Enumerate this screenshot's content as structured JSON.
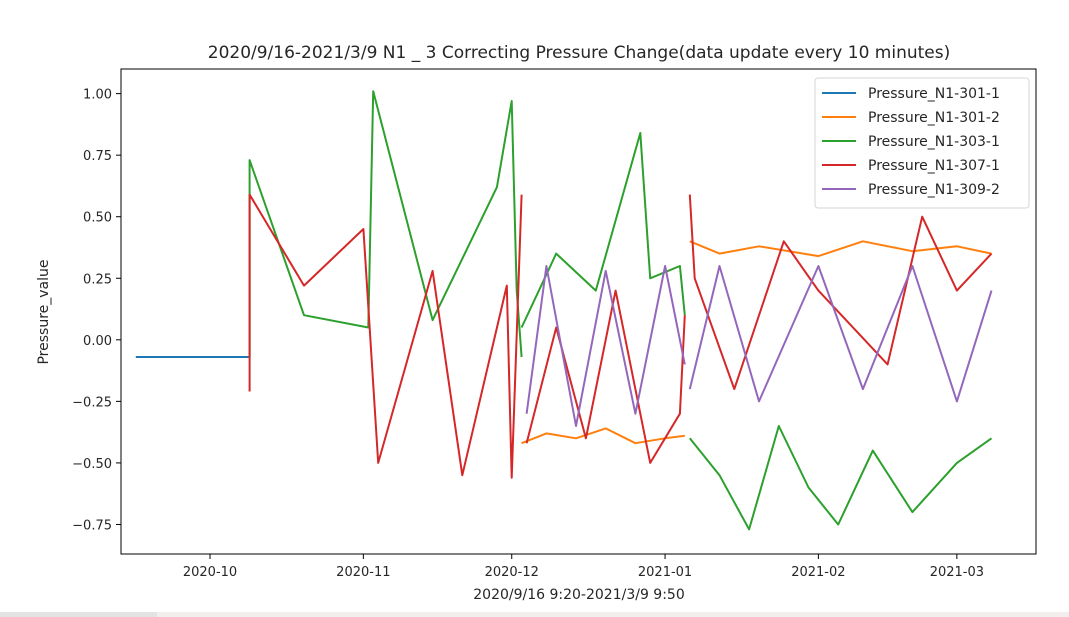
{
  "chart_data": {
    "type": "line",
    "title": "2020/9/16-2021/3/9 N1 _ 3  Correcting Pressure Change(data update every 10 minutes)",
    "xlabel": "2020/9/16 9:20-2021/3/9 9:50",
    "ylabel": "Pressure_value",
    "xlim": [
      "2020-09-13",
      "2021-03-17"
    ],
    "ylim": [
      -0.87,
      1.1
    ],
    "x_ticks": [
      "2020-10",
      "2020-11",
      "2020-12",
      "2021-01",
      "2021-02",
      "2021-03"
    ],
    "x_tick_dates": [
      "2020-10-01",
      "2020-11-01",
      "2020-12-01",
      "2021-01-01",
      "2021-02-01",
      "2021-03-01"
    ],
    "y_ticks": [
      "1.00",
      "0.75",
      "0.50",
      "0.25",
      "0.00",
      "−0.25",
      "−0.50",
      "−0.75"
    ],
    "y_tick_values": [
      1.0,
      0.75,
      0.5,
      0.25,
      0.0,
      -0.25,
      -0.5,
      -0.75
    ],
    "legend_position": "top-right",
    "grid": false,
    "series": [
      {
        "name": "Pressure_N1-301-1",
        "color": "#1f77b4",
        "segments": [
          {
            "x": [
              "2020-09-16",
              "2020-10-09"
            ],
            "y": [
              -0.07,
              -0.07
            ]
          }
        ]
      },
      {
        "name": "Pressure_N1-301-2",
        "color": "#ff7f0e",
        "segments": [
          {
            "x": [
              "2020-12-03",
              "2020-12-08",
              "2020-12-14",
              "2020-12-20",
              "2020-12-26",
              "2021-01-01",
              "2021-01-05"
            ],
            "y": [
              -0.42,
              -0.38,
              -0.4,
              -0.36,
              -0.42,
              -0.4,
              -0.39
            ]
          },
          {
            "x": [
              "2021-01-06",
              "2021-01-12",
              "2021-01-20",
              "2021-02-01",
              "2021-02-10",
              "2021-02-20",
              "2021-03-01",
              "2021-03-08"
            ],
            "y": [
              0.4,
              0.35,
              0.38,
              0.34,
              0.4,
              0.36,
              0.38,
              0.35
            ]
          }
        ]
      },
      {
        "name": "Pressure_N1-303-1",
        "color": "#2ca02c",
        "segments": [
          {
            "x": [
              "2020-10-09",
              "2020-10-09",
              "2020-10-20",
              "2020-11-02",
              "2020-11-03",
              "2020-11-15",
              "2020-11-28",
              "2020-12-01",
              "2020-12-02",
              "2020-12-03"
            ],
            "y": [
              -0.07,
              0.73,
              0.1,
              0.05,
              1.01,
              0.08,
              0.62,
              0.97,
              0.2,
              -0.07
            ]
          },
          {
            "x": [
              "2020-12-03",
              "2020-12-10",
              "2020-12-18",
              "2020-12-27",
              "2020-12-29",
              "2021-01-04",
              "2021-01-05"
            ],
            "y": [
              0.05,
              0.35,
              0.2,
              0.84,
              0.25,
              0.3,
              0.1
            ]
          },
          {
            "x": [
              "2021-01-06",
              "2021-01-12",
              "2021-01-18",
              "2021-01-24",
              "2021-01-30",
              "2021-02-05",
              "2021-02-12",
              "2021-02-20",
              "2021-03-01",
              "2021-03-08"
            ],
            "y": [
              -0.4,
              -0.55,
              -0.77,
              -0.35,
              -0.6,
              -0.75,
              -0.45,
              -0.7,
              -0.5,
              -0.4
            ]
          }
        ]
      },
      {
        "name": "Pressure_N1-307-1",
        "color": "#d62728",
        "segments": [
          {
            "x": [
              "2020-10-09",
              "2020-10-09",
              "2020-10-20",
              "2020-11-01",
              "2020-11-04",
              "2020-11-15",
              "2020-11-21",
              "2020-11-30",
              "2020-12-01",
              "2020-12-03"
            ],
            "y": [
              -0.21,
              0.59,
              0.22,
              0.45,
              -0.5,
              0.28,
              -0.55,
              0.22,
              -0.56,
              0.59
            ]
          },
          {
            "x": [
              "2020-12-04",
              "2020-12-10",
              "2020-12-16",
              "2020-12-22",
              "2020-12-29",
              "2021-01-04",
              "2021-01-05"
            ],
            "y": [
              -0.42,
              0.05,
              -0.4,
              0.2,
              -0.5,
              -0.3,
              0.1
            ]
          },
          {
            "x": [
              "2021-01-06",
              "2021-01-07",
              "2021-01-15",
              "2021-01-25",
              "2021-02-01",
              "2021-02-15",
              "2021-02-22",
              "2021-03-01",
              "2021-03-08"
            ],
            "y": [
              0.59,
              0.25,
              -0.2,
              0.4,
              0.2,
              -0.1,
              0.5,
              0.2,
              0.35
            ]
          }
        ]
      },
      {
        "name": "Pressure_N1-309-2",
        "color": "#9467bd",
        "segments": [
          {
            "x": [
              "2020-12-04",
              "2020-12-08",
              "2020-12-14",
              "2020-12-20",
              "2020-12-26",
              "2021-01-01",
              "2021-01-05"
            ],
            "y": [
              -0.3,
              0.3,
              -0.35,
              0.28,
              -0.3,
              0.3,
              -0.1
            ]
          },
          {
            "x": [
              "2021-01-06",
              "2021-01-12",
              "2021-01-20",
              "2021-02-01",
              "2021-02-10",
              "2021-02-20",
              "2021-03-01",
              "2021-03-08"
            ],
            "y": [
              -0.2,
              0.3,
              -0.25,
              0.3,
              -0.2,
              0.3,
              -0.25,
              0.2
            ]
          }
        ]
      }
    ]
  }
}
